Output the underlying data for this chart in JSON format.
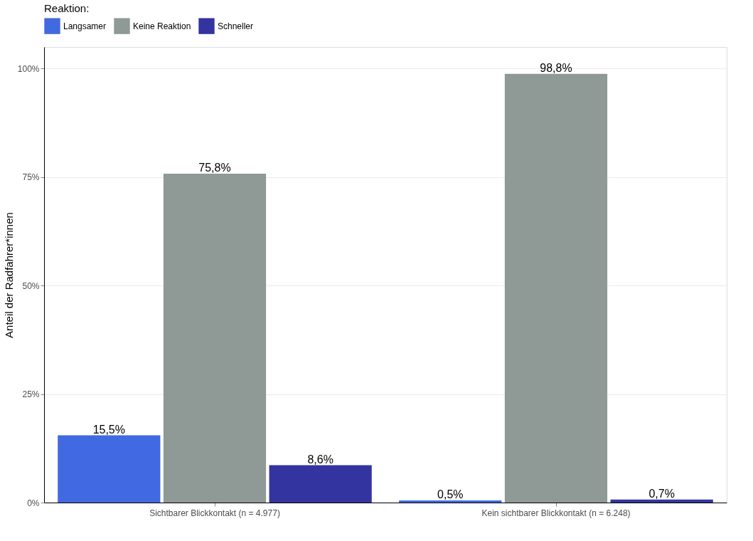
{
  "chart_data": {
    "type": "bar",
    "ylabel": "Anteil der Radfahrer*innen",
    "legend_title": "Reaktion:",
    "legend": "top",
    "categories": [
      "Sichtbarer Blickkontakt (n = 4.977)",
      "Kein sichtbarer Blickkontakt (n = 6.248)"
    ],
    "series": [
      {
        "name": "Langsamer",
        "color": "#4169e1",
        "values": [
          15.5,
          0.5
        ],
        "value_labels": [
          "15,5%",
          "0,5%"
        ]
      },
      {
        "name": "Keine Reaktion",
        "color": "#8f9996",
        "values": [
          75.8,
          98.8
        ],
        "value_labels": [
          "75,8%",
          "98,8%"
        ]
      },
      {
        "name": "Schneller",
        "color": "#3434a0",
        "values": [
          8.6,
          0.7
        ],
        "value_labels": [
          "8,6%",
          "0,7%"
        ]
      }
    ],
    "ylim": [
      0,
      105
    ],
    "yticks": [
      {
        "value": 0,
        "label": "0%"
      },
      {
        "value": 25,
        "label": "25%"
      },
      {
        "value": 50,
        "label": "50%"
      },
      {
        "value": 75,
        "label": "75%"
      },
      {
        "value": 100,
        "label": "100%"
      }
    ],
    "grid": "y"
  }
}
